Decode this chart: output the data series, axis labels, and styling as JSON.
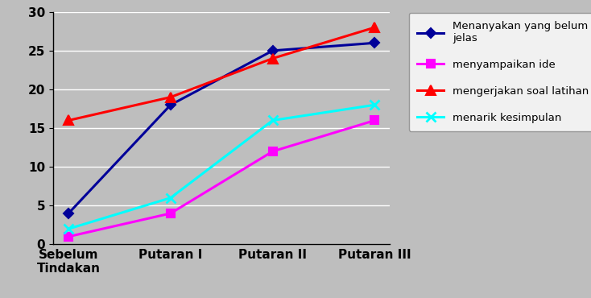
{
  "x_labels": [
    "Sebelum\nTindakan",
    "Putaran I",
    "Putaran II",
    "Putaran III"
  ],
  "series": [
    {
      "name": "Menanyakan yang belum\njelas",
      "values": [
        4,
        18,
        25,
        26
      ],
      "color": "#000099",
      "marker": "D",
      "marker_size": 6,
      "linewidth": 2.2
    },
    {
      "name": "menyampaikan ide",
      "values": [
        1,
        4,
        12,
        16
      ],
      "color": "#FF00FF",
      "marker": "s",
      "marker_size": 7,
      "linewidth": 2.2
    },
    {
      "name": "mengerjakan soal latihan",
      "values": [
        16,
        19,
        24,
        28
      ],
      "color": "#FF0000",
      "marker": "^",
      "marker_size": 8,
      "linewidth": 2.2
    },
    {
      "name": "menarik kesimpulan",
      "values": [
        2,
        6,
        16,
        18
      ],
      "color": "#00FFFF",
      "marker": "x",
      "marker_size": 9,
      "linewidth": 2.2,
      "markeredgewidth": 2.0
    }
  ],
  "ylim": [
    0,
    30
  ],
  "yticks": [
    0,
    5,
    10,
    15,
    20,
    25,
    30
  ],
  "plot_bg_color": "#BEBEBE",
  "fig_bg_color": "#BEBEBE",
  "legend_fontsize": 9.5,
  "tick_fontsize": 11,
  "figsize": [
    7.34,
    3.7
  ],
  "dpi": 100
}
